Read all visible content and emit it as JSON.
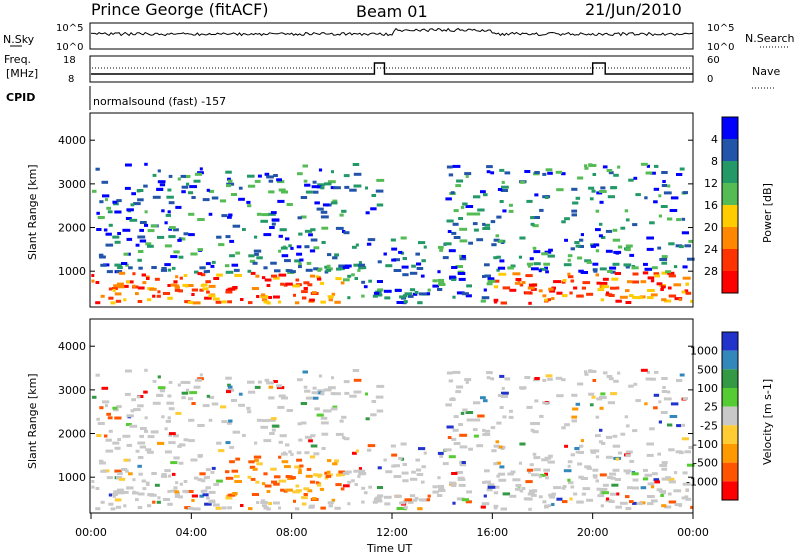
{
  "header": {
    "site": "Prince George (fitACF)",
    "beam": "Beam 01",
    "date": "21/Jun/2010"
  },
  "top_strip": {
    "left_label": "N.Sky",
    "right_label": "N.Search",
    "y_ticks_left": [
      "10^5",
      "10^0"
    ],
    "y_ticks_right": [
      "10^5",
      "10^0"
    ]
  },
  "freq_strip": {
    "left_label_1": "Freq.",
    "left_label_2": "[MHz]",
    "right_label": "Nave",
    "y_ticks_left": [
      "18",
      "8"
    ],
    "y_ticks_right": [
      "60",
      "0"
    ]
  },
  "cpid": {
    "label": "CPID",
    "text": "normalsound (fast) -157"
  },
  "chart_data": [
    {
      "type": "heatmap",
      "title": "",
      "ylabel": "Slant Range [km]",
      "ylim": [
        180,
        4600
      ],
      "y_ticks": [
        1000,
        2000,
        3000,
        4000
      ],
      "colorbar_label": "Power [dB]",
      "colorbar_ticks": [
        "4",
        "8",
        "12",
        "16",
        "20",
        "24",
        "28"
      ],
      "colorbar_colors": [
        "#0000ff",
        "#2255aa",
        "#229966",
        "#55bb55",
        "#ffcc00",
        "#ff8800",
        "#ff3300",
        "#ff0000"
      ]
    },
    {
      "type": "heatmap",
      "title": "",
      "ylabel": "Slant Range [km]",
      "ylim": [
        180,
        4600
      ],
      "y_ticks": [
        1000,
        2000,
        3000,
        4000
      ],
      "colorbar_label": "Velocity [m s-1]",
      "colorbar_ticks": [
        "1000",
        "500",
        "100",
        "25",
        "-25",
        "-100",
        "-500",
        "-1000"
      ],
      "colorbar_colors": [
        "#2233cc",
        "#3388bb",
        "#339944",
        "#55cc33",
        "#c8c8c8",
        "#ffcc33",
        "#ff9900",
        "#ff5500",
        "#ff0000"
      ]
    }
  ],
  "x_axis": {
    "label": "Time UT",
    "ticks": [
      "00:00",
      "04:00",
      "08:00",
      "12:00",
      "16:00",
      "20:00",
      "00:00"
    ]
  }
}
